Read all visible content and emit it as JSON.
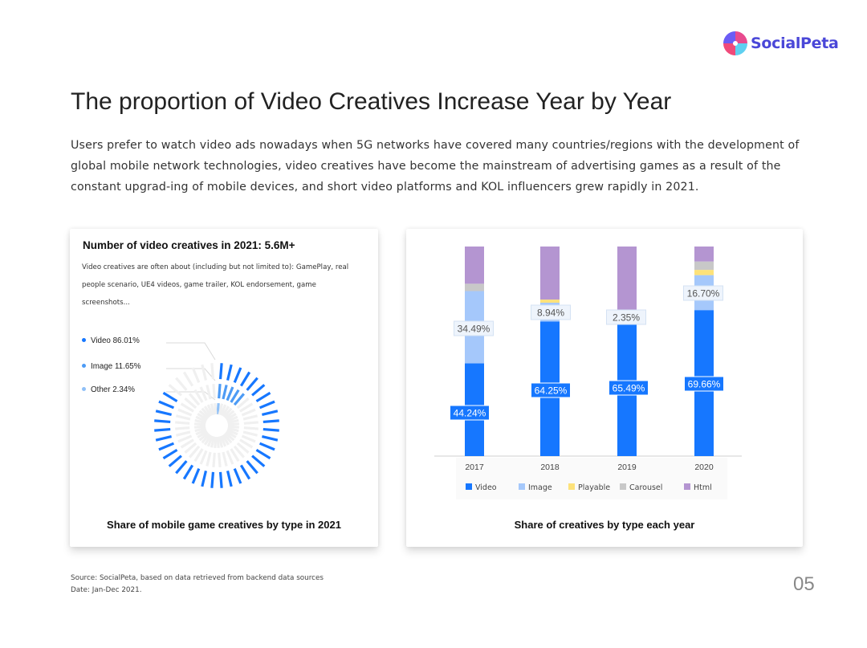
{
  "brand": {
    "name": "SocialPeta"
  },
  "header": {
    "title": "The proportion of Video Creatives Increase Year by Year",
    "description": "Users prefer to watch video ads nowadays when 5G networks have covered many countries/regions with the development of global mobile network technologies, video creatives have become the mainstream of advertising games as a result of the constant upgrad-ing of mobile devices, and short video platforms and KOL influencers grew rapidly in 2021."
  },
  "left_card": {
    "title": "Number of video creatives in 2021: 5.6M+",
    "subtitle": "Video creatives are often about (including but not limited to): GamePlay, real people scenario, UE4 videos, game trailer, KOL endorsement, game screenshots...",
    "legend": [
      {
        "label": "Video 86.01%",
        "color": "#1677ff"
      },
      {
        "label": "Image 11.65%",
        "color": "#4d9bf5"
      },
      {
        "label": "Other 2.34%",
        "color": "#8fc0f7"
      }
    ],
    "caption": "Share of mobile game creatives by type in 2021"
  },
  "right_card": {
    "caption": "Share of creatives by type each year"
  },
  "chart_data": [
    {
      "type": "pie",
      "title": "Share of mobile game creatives by type in 2021",
      "categories": [
        "Video",
        "Image",
        "Other"
      ],
      "values": [
        86.01,
        11.65,
        2.34
      ],
      "colors": [
        "#1677ff",
        "#4d9bf5",
        "#8fc0f7"
      ]
    },
    {
      "type": "bar",
      "stacked": true,
      "title": "Share of creatives by type each year",
      "categories": [
        "2017",
        "2018",
        "2019",
        "2020"
      ],
      "ylim": [
        0,
        100
      ],
      "legend_position": "bottom",
      "series": [
        {
          "name": "Video",
          "color": "#1677ff",
          "values": [
            44.24,
            64.25,
            65.49,
            69.66
          ],
          "labels": [
            "44.24%",
            "64.25%",
            "65.49%",
            "69.66%"
          ]
        },
        {
          "name": "Image",
          "color": "#a5c8fb",
          "values": [
            34.49,
            8.94,
            2.35,
            16.7
          ],
          "labels": [
            "34.49%",
            "8.94%",
            "2.35%",
            "16.70%"
          ]
        },
        {
          "name": "Playable",
          "color": "#fde27a",
          "values": [
            0,
            1.5,
            0,
            2.5
          ]
        },
        {
          "name": "Carousel",
          "color": "#c8c8c8",
          "values": [
            3.5,
            0,
            0,
            4
          ]
        },
        {
          "name": "Html",
          "color": "#b495d1",
          "values": [
            17.77,
            25.31,
            32.16,
            7.14
          ]
        }
      ]
    }
  ],
  "footer": {
    "source": "Source: SocialPeta, based on data retrieved from backend data sources",
    "date": "Date: Jan-Dec 2021.",
    "page_number": "05"
  }
}
